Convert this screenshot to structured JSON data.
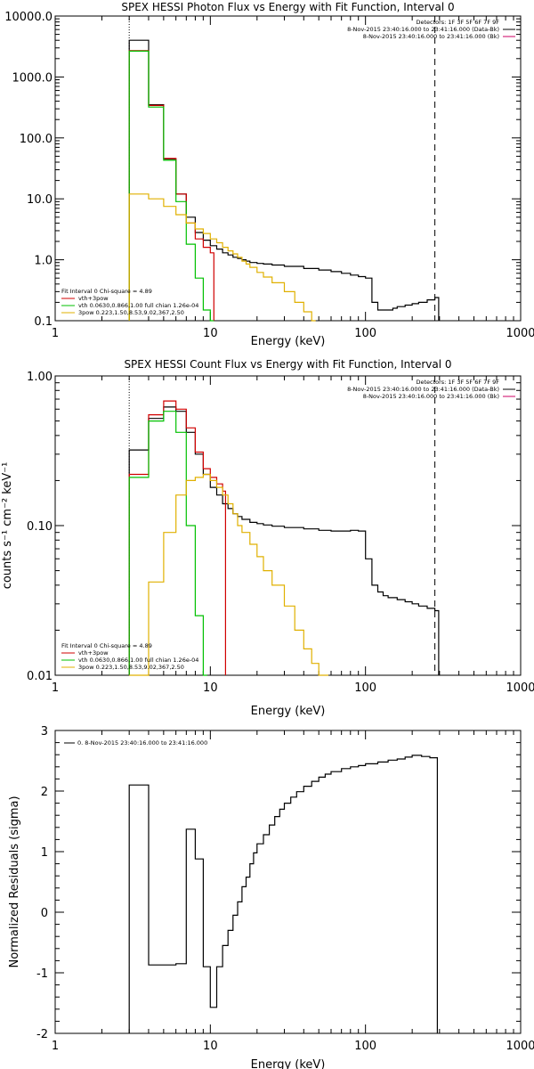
{
  "chart_data": [
    {
      "type": "line",
      "title": "SPEX HESSI Photon Flux vs Energy with Fit Function, Interval 0",
      "xlabel": "Energy (keV)",
      "ylabel": "",
      "xscale": "log",
      "yscale": "log",
      "xlim": [
        1,
        1000
      ],
      "ylim": [
        0.1,
        10000
      ],
      "xticks": [
        "1",
        "10",
        "100",
        "1000"
      ],
      "yticks": [
        "0.1",
        "1.0",
        "10.0",
        "100.0",
        "1000.0",
        "10000.0"
      ],
      "vlines": {
        "dotted": 3,
        "dashed": 280
      },
      "legend_tr": [
        "Detectors: 1F 3F 5F 6F 7F 9F",
        "8-Nov-2015 23:40:16.000 to 23:41:16.000 (Data-Bk)",
        "8-Nov-2015 23:40:16.000 to 23:41:16.000 (Bk)"
      ],
      "legend_bl": [
        "Fit Interval  0    Chi-square = 4.89",
        "vth+3pow",
        "vth 0.0630,0.866,1.00  full chian 1.26e-04",
        "3pow 0.223,1.50,8.53,9.02,367,2.50"
      ],
      "series": [
        {
          "name": "Data-Bk",
          "color": "#000000",
          "x": [
            3,
            4,
            5,
            6,
            7,
            8,
            9,
            10,
            11,
            12,
            13,
            14,
            15,
            16,
            17,
            18,
            20,
            22,
            25,
            30,
            40,
            50,
            60,
            70,
            80,
            90,
            100,
            110,
            120,
            130,
            140,
            150,
            160,
            180,
            200,
            220,
            250,
            280
          ],
          "y": [
            4000,
            350,
            45,
            12,
            5,
            2.8,
            2.1,
            1.7,
            1.5,
            1.3,
            1.2,
            1.1,
            1.05,
            1.0,
            0.95,
            0.9,
            0.87,
            0.85,
            0.82,
            0.78,
            0.72,
            0.68,
            0.64,
            0.6,
            0.56,
            0.53,
            0.5,
            0.2,
            0.15,
            0.15,
            0.15,
            0.16,
            0.17,
            0.18,
            0.19,
            0.2,
            0.22,
            0.24
          ]
        },
        {
          "name": "vth+3pow",
          "color": "#d00000",
          "x": [
            3,
            4,
            5,
            6,
            7,
            8,
            9,
            10
          ],
          "y": [
            2700,
            340,
            46,
            12,
            4,
            2.2,
            1.6,
            1.3
          ]
        },
        {
          "name": "vth",
          "color": "#00c000",
          "x": [
            3,
            4,
            5,
            6,
            7,
            8,
            9,
            10
          ],
          "y": [
            2650,
            320,
            43,
            9,
            1.8,
            0.5,
            0.15,
            0.1
          ]
        },
        {
          "name": "3pow",
          "color": "#e0b000",
          "x": [
            3,
            4,
            5,
            6,
            7,
            8,
            9,
            10,
            11,
            12,
            13,
            14,
            15,
            16,
            17,
            18,
            20,
            22,
            25,
            30,
            35,
            40,
            45
          ],
          "y": [
            12,
            10,
            7.5,
            5.5,
            4,
            3.2,
            2.7,
            2.2,
            1.9,
            1.6,
            1.4,
            1.25,
            1.1,
            0.95,
            0.85,
            0.75,
            0.62,
            0.52,
            0.42,
            0.3,
            0.2,
            0.14,
            0.1
          ]
        }
      ]
    },
    {
      "type": "line",
      "title": "SPEX HESSI Count Flux vs Energy with Fit Function, Interval 0",
      "xlabel": "Energy (keV)",
      "ylabel": "counts s⁻¹ cm⁻² keV⁻¹",
      "xscale": "log",
      "yscale": "log",
      "xlim": [
        1,
        1000
      ],
      "ylim": [
        0.01,
        1
      ],
      "xticks": [
        "1",
        "10",
        "100",
        "1000"
      ],
      "yticks": [
        "0.01",
        "0.10",
        "1.00"
      ],
      "vlines": {
        "dotted": 3,
        "dashed": 280
      },
      "legend_tr": [
        "Detectors: 1F 3F 5F 6F 7F 9F",
        "8-Nov-2015 23:40:16.000 to 23:41:16.000 (Data-Bk)",
        "8-Nov-2015 23:40:16.000 to 23:41:16.000 (Bk)"
      ],
      "legend_bl": [
        "Fit Interval  0    Chi-square = 4.89",
        "vth+3pow",
        "vth 0.0630,0.866,1.00  full chian 1.26e-04",
        "3pow 0.223,1.50,8.53,9.02,367,2.50"
      ],
      "series": [
        {
          "name": "Data-Bk",
          "color": "#000000",
          "x": [
            3,
            4,
            5,
            6,
            7,
            8,
            9,
            10,
            11,
            12,
            13,
            14,
            15,
            16,
            18,
            20,
            22,
            25,
            30,
            40,
            50,
            60,
            70,
            80,
            90,
            100,
            110,
            120,
            130,
            140,
            160,
            180,
            200,
            220,
            250,
            280
          ],
          "y": [
            0.32,
            0.52,
            0.62,
            0.58,
            0.42,
            0.3,
            0.22,
            0.18,
            0.16,
            0.14,
            0.13,
            0.12,
            0.115,
            0.11,
            0.105,
            0.103,
            0.101,
            0.099,
            0.097,
            0.095,
            0.093,
            0.092,
            0.092,
            0.093,
            0.092,
            0.06,
            0.04,
            0.036,
            0.034,
            0.033,
            0.032,
            0.031,
            0.03,
            0.029,
            0.028,
            0.027
          ]
        },
        {
          "name": "vth+3pow",
          "color": "#d00000",
          "x": [
            3,
            4,
            5,
            6,
            7,
            8,
            9,
            10,
            11,
            12
          ],
          "y": [
            0.22,
            0.55,
            0.68,
            0.6,
            0.45,
            0.31,
            0.24,
            0.21,
            0.19,
            0.17
          ]
        },
        {
          "name": "vth",
          "color": "#00c000",
          "x": [
            3,
            4,
            5,
            6,
            7,
            8,
            9
          ],
          "y": [
            0.21,
            0.5,
            0.58,
            0.42,
            0.1,
            0.025,
            0.005
          ]
        },
        {
          "name": "3pow",
          "color": "#e0b000",
          "x": [
            3,
            4,
            5,
            6,
            7,
            8,
            9,
            10,
            11,
            12,
            13,
            14,
            15,
            16,
            18,
            20,
            22,
            25,
            30,
            35,
            40,
            45,
            50,
            55
          ],
          "y": [
            0.005,
            0.042,
            0.09,
            0.16,
            0.2,
            0.21,
            0.22,
            0.2,
            0.18,
            0.16,
            0.14,
            0.12,
            0.1,
            0.09,
            0.075,
            0.062,
            0.05,
            0.04,
            0.029,
            0.02,
            0.015,
            0.012,
            0.01,
            0.008
          ]
        }
      ]
    },
    {
      "type": "line",
      "title": "",
      "xlabel": "Energy (keV)",
      "ylabel": "Normalized Residuals (sigma)",
      "xscale": "log",
      "yscale": "linear",
      "xlim": [
        1,
        1000
      ],
      "ylim": [
        -2,
        3
      ],
      "xticks": [
        "1",
        "10",
        "100",
        "1000"
      ],
      "yticks": [
        "-2",
        "-1",
        "0",
        "1",
        "2",
        "3"
      ],
      "legend_tl": [
        "0.  8-Nov-2015 23:40:16.000 to 23:41:16.000"
      ],
      "series": [
        {
          "name": "0.  8-Nov-2015 23:40:16.000 to 23:41:16.000",
          "color": "#000000",
          "x": [
            3,
            4,
            5,
            6,
            7,
            8,
            9,
            10,
            11,
            12,
            13,
            14,
            15,
            16,
            17,
            18,
            19,
            20,
            22,
            24,
            26,
            28,
            30,
            33,
            36,
            40,
            45,
            50,
            55,
            60,
            70,
            80,
            90,
            100,
            120,
            140,
            160,
            180,
            200,
            230,
            260,
            280
          ],
          "y": [
            2.1,
            -0.87,
            -0.87,
            -0.85,
            1.37,
            0.88,
            -0.9,
            -1.57,
            -0.9,
            -0.55,
            -0.3,
            -0.05,
            0.17,
            0.42,
            0.58,
            0.8,
            0.98,
            1.13,
            1.28,
            1.44,
            1.58,
            1.7,
            1.8,
            1.9,
            1.99,
            2.08,
            2.16,
            2.23,
            2.28,
            2.32,
            2.37,
            2.4,
            2.42,
            2.45,
            2.48,
            2.51,
            2.53,
            2.56,
            2.59,
            2.57,
            2.55,
            2.55
          ]
        }
      ]
    }
  ]
}
